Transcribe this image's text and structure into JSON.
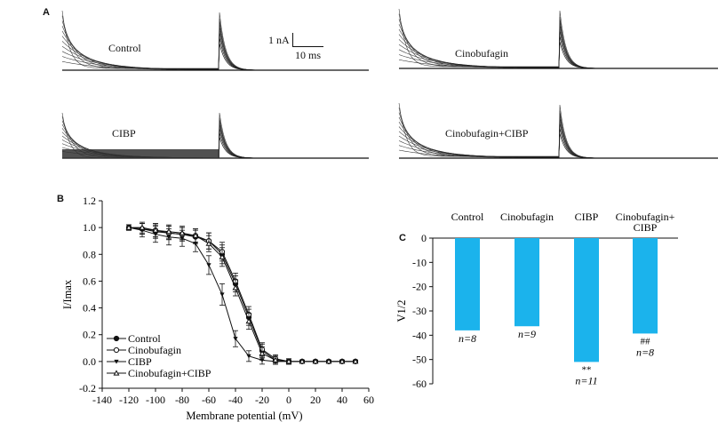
{
  "panels": {
    "a": {
      "letter": "A",
      "traces": [
        "Control",
        "Cinobufagin",
        "CIBP",
        "Cinobufagin+CIBP"
      ],
      "scalebar": {
        "current": "1 nA",
        "time": "10 ms"
      }
    },
    "b": {
      "letter": "B"
    },
    "c": {
      "letter": "C"
    }
  },
  "chart_data": [
    {
      "type": "line",
      "xlabel": "Membrane potential (mV)",
      "ylabel": "I/Imax",
      "xlim": [
        -140,
        60
      ],
      "ylim": [
        -0.2,
        1.2
      ],
      "xticks": [
        -140,
        -120,
        -100,
        -80,
        -60,
        -40,
        -20,
        0,
        20,
        40,
        60
      ],
      "yticks": [
        -0.2,
        0.0,
        0.2,
        0.4,
        0.6,
        0.8,
        1.0,
        1.2
      ],
      "yticklabels": [
        "-0.2",
        "0.0",
        "0.2",
        "0.4",
        "0.6",
        "0.8",
        "1.0",
        "1.2"
      ],
      "grid": false,
      "legend": "bottom-left",
      "x": [
        -120,
        -110,
        -100,
        -90,
        -80,
        -70,
        -60,
        -50,
        -40,
        -30,
        -20,
        -10,
        0,
        10,
        20,
        30,
        40,
        50
      ],
      "series": [
        {
          "name": "Control",
          "marker": "filled-circle",
          "values": [
            1.0,
            0.99,
            0.97,
            0.96,
            0.95,
            0.93,
            0.9,
            0.8,
            0.58,
            0.33,
            0.08,
            0.01,
            0.0,
            0.0,
            0.0,
            0.0,
            0.0,
            0.0
          ],
          "errors": [
            0.02,
            0.04,
            0.05,
            0.05,
            0.05,
            0.05,
            0.06,
            0.07,
            0.06,
            0.06,
            0.05,
            0.03,
            0.02,
            0.01,
            0.01,
            0.01,
            0.01,
            0.01
          ]
        },
        {
          "name": "Cinobufagin",
          "marker": "open-circle",
          "values": [
            1.0,
            0.99,
            0.98,
            0.96,
            0.95,
            0.94,
            0.9,
            0.82,
            0.6,
            0.35,
            0.09,
            0.02,
            0.0,
            0.0,
            0.0,
            0.0,
            0.0,
            0.0
          ],
          "errors": [
            0.02,
            0.04,
            0.05,
            0.05,
            0.05,
            0.05,
            0.06,
            0.07,
            0.06,
            0.06,
            0.05,
            0.03,
            0.02,
            0.01,
            0.01,
            0.01,
            0.01,
            0.01
          ]
        },
        {
          "name": "CIBP",
          "marker": "filled-triangle-down",
          "values": [
            1.0,
            0.98,
            0.95,
            0.93,
            0.92,
            0.88,
            0.72,
            0.5,
            0.17,
            0.04,
            0.01,
            0.0,
            0.0,
            0.0,
            0.0,
            0.0,
            0.0,
            0.0
          ],
          "errors": [
            0.02,
            0.05,
            0.06,
            0.06,
            0.06,
            0.06,
            0.07,
            0.08,
            0.06,
            0.04,
            0.03,
            0.02,
            0.01,
            0.01,
            0.01,
            0.01,
            0.01,
            0.01
          ]
        },
        {
          "name": "Cinobufagin+CIBP",
          "marker": "open-triangle-up",
          "values": [
            1.0,
            1.0,
            0.98,
            0.97,
            0.96,
            0.94,
            0.88,
            0.78,
            0.55,
            0.3,
            0.06,
            0.01,
            0.0,
            0.0,
            0.0,
            0.0,
            0.0,
            0.0
          ],
          "errors": [
            0.02,
            0.04,
            0.05,
            0.05,
            0.05,
            0.05,
            0.06,
            0.07,
            0.06,
            0.06,
            0.05,
            0.03,
            0.02,
            0.01,
            0.01,
            0.01,
            0.01,
            0.01
          ]
        }
      ]
    },
    {
      "type": "bar",
      "ylabel": "V1/2",
      "ylim": [
        -60,
        0
      ],
      "yticks": [
        0,
        -10,
        -20,
        -30,
        -40,
        -50,
        -60
      ],
      "categories": [
        "Control",
        "Cinobufagin",
        "CIBP",
        "Cinobufagin+\nCIBP"
      ],
      "values": [
        -38,
        -36.3,
        -51,
        -39.3
      ],
      "n_labels": [
        "n=8",
        "n=9",
        "n=11",
        "n=8"
      ],
      "significance": [
        "",
        "",
        "**",
        "##"
      ],
      "bar_color": "#1bb3ec",
      "legend": "none"
    }
  ]
}
